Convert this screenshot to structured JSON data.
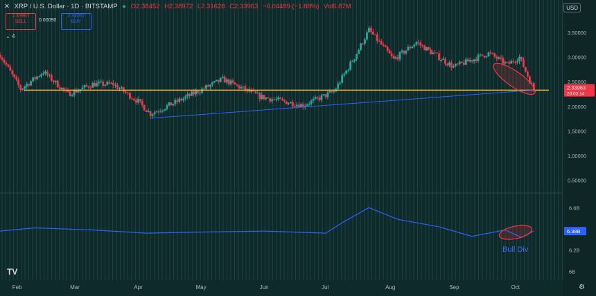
{
  "header": {
    "symbol": "XRP / U.S. Dollar · 1D · BITSTAMP",
    "open": "O2.38452",
    "high": "H2.38972",
    "low": "L2.31628",
    "close": "C2.33963",
    "change": "−0.04489 (−1.88%)",
    "volume": "Vol6.87M"
  },
  "trade": {
    "sell_price": "2.33967",
    "sell_label": "SELL",
    "spread": "0.00090",
    "buy_price": "2.34057",
    "buy_label": "BUY"
  },
  "currency_button": "USD",
  "collapse_label": "4",
  "price_tag": {
    "price": "2.33963",
    "countdown": "20:03:14"
  },
  "volume_tag": "6.38B",
  "annotation": "Bull Div",
  "colors": {
    "background": "#0f2a2a",
    "up": "#26a69a",
    "down": "#f23645",
    "support_line": "#f0b429",
    "trend_line": "#2962ff",
    "obv_line": "#2962ff",
    "ellipse": "#f23645"
  },
  "chart_data": [
    {
      "type": "candlestick",
      "title": "XRP / U.S. Dollar · 1D · BITSTAMP",
      "yaxis_ticks": [
        "3.50000",
        "3.00000",
        "2.50000",
        "2.00000",
        "1.50000",
        "1.00000",
        "0.50000"
      ],
      "xaxis_ticks": [
        "Feb",
        "Mar",
        "Apr",
        "May",
        "Jun",
        "Jul",
        "Aug",
        "Sep",
        "Oct"
      ],
      "ylim": [
        0.3,
        3.85
      ],
      "x_start": "2025-01-24",
      "x_end": "2025-10-24",
      "support_level": 2.33,
      "trend_line": [
        {
          "x": "2025-04-07",
          "y": 1.76
        },
        {
          "x": "2025-10-10",
          "y": 2.33
        }
      ],
      "price_path": [
        {
          "x": "2025-01-24",
          "y": 3.05
        },
        {
          "x": "2025-02-03",
          "y": 2.35
        },
        {
          "x": "2025-02-14",
          "y": 2.7
        },
        {
          "x": "2025-02-26",
          "y": 2.25
        },
        {
          "x": "2025-03-10",
          "y": 2.45
        },
        {
          "x": "2025-03-20",
          "y": 2.45
        },
        {
          "x": "2025-04-01",
          "y": 2.1
        },
        {
          "x": "2025-04-07",
          "y": 1.85
        },
        {
          "x": "2025-04-20",
          "y": 2.1
        },
        {
          "x": "2025-05-12",
          "y": 2.55
        },
        {
          "x": "2025-05-30",
          "y": 2.2
        },
        {
          "x": "2025-06-20",
          "y": 2.02
        },
        {
          "x": "2025-07-05",
          "y": 2.3
        },
        {
          "x": "2025-07-15",
          "y": 3.0
        },
        {
          "x": "2025-07-22",
          "y": 3.55
        },
        {
          "x": "2025-08-03",
          "y": 2.95
        },
        {
          "x": "2025-08-14",
          "y": 3.3
        },
        {
          "x": "2025-09-01",
          "y": 2.8
        },
        {
          "x": "2025-09-18",
          "y": 3.08
        },
        {
          "x": "2025-09-27",
          "y": 2.85
        },
        {
          "x": "2025-10-03",
          "y": 3.0
        },
        {
          "x": "2025-10-10",
          "y": 2.34
        }
      ]
    },
    {
      "type": "line",
      "title": "OBV",
      "yaxis_ticks": [
        "6.6B",
        "6.4B",
        "6.2B",
        "6B"
      ],
      "ylim": [
        5.95,
        6.7
      ],
      "series": [
        {
          "values": [
            {
              "x": "2025-01-24",
              "y": 6.38
            },
            {
              "x": "2025-02-10",
              "y": 6.41
            },
            {
              "x": "2025-03-10",
              "y": 6.39
            },
            {
              "x": "2025-04-05",
              "y": 6.36
            },
            {
              "x": "2025-05-01",
              "y": 6.37
            },
            {
              "x": "2025-06-01",
              "y": 6.38
            },
            {
              "x": "2025-07-01",
              "y": 6.36
            },
            {
              "x": "2025-07-10",
              "y": 6.47
            },
            {
              "x": "2025-07-22",
              "y": 6.6
            },
            {
              "x": "2025-08-05",
              "y": 6.49
            },
            {
              "x": "2025-08-25",
              "y": 6.42
            },
            {
              "x": "2025-09-10",
              "y": 6.33
            },
            {
              "x": "2025-09-26",
              "y": 6.39
            },
            {
              "x": "2025-10-04",
              "y": 6.32
            },
            {
              "x": "2025-10-10",
              "y": 6.38
            }
          ]
        }
      ]
    }
  ]
}
